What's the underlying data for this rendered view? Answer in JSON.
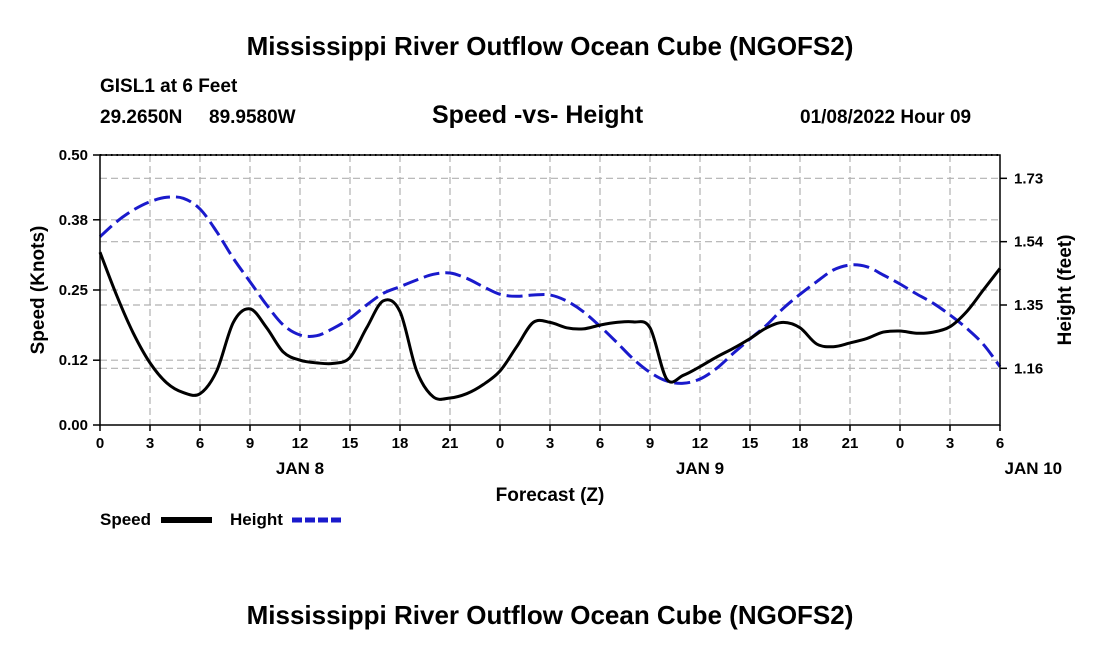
{
  "page": {
    "title": "Mississippi River Outflow Ocean Cube (NGOFS2)",
    "title_repeat": "Mississippi River Outflow Ocean Cube (NGOFS2)"
  },
  "station": {
    "name": "GISL1 at 6 Feet",
    "lat": "29.2650N",
    "lon": "89.9580W",
    "datetime": "01/08/2022 Hour 09"
  },
  "chart_data": {
    "type": "line",
    "title": "Speed -vs- Height",
    "xlabel": "Forecast (Z)",
    "ylabel": "Speed (Knots)",
    "y2label": "Height (feet)",
    "x_ticks": [
      "0",
      "3",
      "6",
      "9",
      "12",
      "15",
      "18",
      "21",
      "0",
      "3",
      "6",
      "9",
      "12",
      "15",
      "18",
      "21",
      "0",
      "3",
      "6"
    ],
    "day_labels": [
      {
        "label": "JAN 8",
        "hour": 12
      },
      {
        "label": "JAN 9",
        "hour": 36
      },
      {
        "label": "JAN 10",
        "hour": 56
      }
    ],
    "xlim": [
      0,
      54
    ],
    "ylim": [
      0,
      0.5
    ],
    "y_ticks": [
      "0.00",
      "0.12",
      "0.25",
      "0.38",
      "0.50"
    ],
    "y2lim": [
      0.99,
      1.8
    ],
    "y2_ticks": [
      "1.16",
      "1.35",
      "1.54",
      "1.73"
    ],
    "colors": {
      "speed": "#000000",
      "height": "#1a1acc",
      "grid": "#b0b0b0"
    },
    "series": [
      {
        "name": "Speed",
        "axis": "left",
        "style": "solid",
        "x": [
          0,
          1,
          2,
          3,
          4,
          5,
          6,
          7,
          8,
          9,
          10,
          11,
          12,
          13,
          14,
          15,
          16,
          17,
          18,
          19,
          20,
          21,
          22,
          23,
          24,
          25,
          26,
          27,
          28,
          29,
          30,
          31,
          32,
          33,
          34,
          35,
          36,
          37,
          38,
          39,
          40,
          41,
          42,
          43,
          44,
          45,
          46,
          47,
          48,
          49,
          50,
          51,
          52,
          53,
          54
        ],
        "values": [
          0.32,
          0.24,
          0.17,
          0.115,
          0.078,
          0.06,
          0.058,
          0.1,
          0.19,
          0.215,
          0.18,
          0.135,
          0.12,
          0.115,
          0.114,
          0.125,
          0.18,
          0.23,
          0.21,
          0.1,
          0.052,
          0.05,
          0.058,
          0.075,
          0.1,
          0.145,
          0.19,
          0.19,
          0.18,
          0.178,
          0.185,
          0.19,
          0.191,
          0.18,
          0.085,
          0.092,
          0.108,
          0.126,
          0.142,
          0.16,
          0.18,
          0.19,
          0.18,
          0.15,
          0.145,
          0.152,
          0.16,
          0.172,
          0.174,
          0.17,
          0.172,
          0.182,
          0.21,
          0.25,
          0.29
        ]
      },
      {
        "name": "Height",
        "axis": "right",
        "style": "dashed",
        "x": [
          0,
          1,
          2,
          3,
          4,
          5,
          6,
          7,
          8,
          9,
          10,
          11,
          12,
          13,
          14,
          15,
          16,
          17,
          18,
          19,
          20,
          21,
          22,
          23,
          24,
          25,
          26,
          27,
          28,
          29,
          30,
          31,
          32,
          33,
          34,
          35,
          36,
          37,
          38,
          39,
          40,
          41,
          42,
          43,
          44,
          45,
          46,
          47,
          48,
          49,
          50,
          51,
          52,
          53,
          54
        ],
        "values": [
          1.555,
          1.6,
          1.635,
          1.66,
          1.673,
          1.67,
          1.638,
          1.57,
          1.49,
          1.42,
          1.35,
          1.29,
          1.26,
          1.258,
          1.28,
          1.31,
          1.35,
          1.385,
          1.405,
          1.425,
          1.442,
          1.446,
          1.43,
          1.405,
          1.382,
          1.376,
          1.38,
          1.38,
          1.362,
          1.33,
          1.286,
          1.238,
          1.188,
          1.148,
          1.122,
          1.115,
          1.128,
          1.16,
          1.205,
          1.248,
          1.29,
          1.34,
          1.382,
          1.42,
          1.455,
          1.47,
          1.465,
          1.44,
          1.413,
          1.383,
          1.355,
          1.32,
          1.28,
          1.232,
          1.165
        ]
      }
    ],
    "legend": [
      {
        "label": "Speed",
        "style": "solid"
      },
      {
        "label": "Height",
        "style": "dashed"
      }
    ]
  }
}
